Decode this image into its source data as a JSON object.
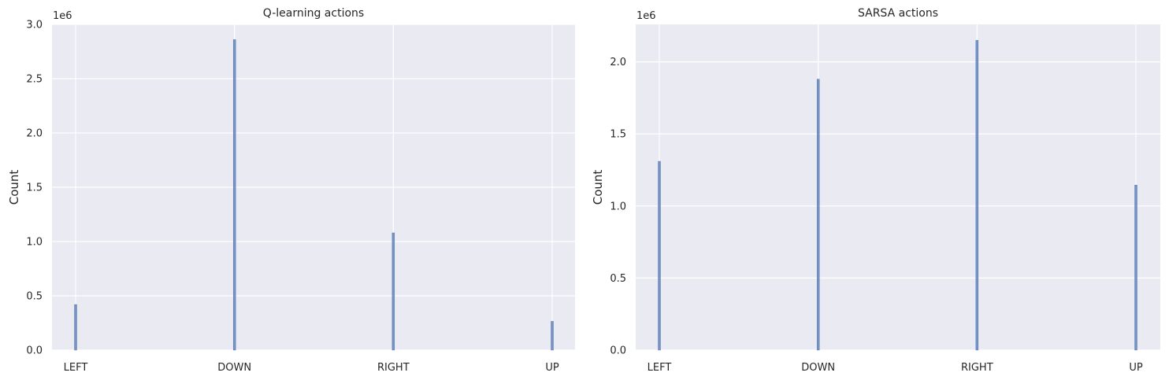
{
  "chart_data": [
    {
      "type": "bar",
      "title": "Q-learning actions",
      "xlabel": "",
      "ylabel": "Count",
      "offset_label": "1e6",
      "categories": [
        "LEFT",
        "DOWN",
        "RIGHT",
        "UP"
      ],
      "values": [
        420000,
        2860000,
        1080000,
        265000
      ],
      "ylim": [
        0,
        3000000
      ],
      "yticks": [
        0,
        500000,
        1000000,
        1500000,
        2000000,
        2500000,
        3000000
      ],
      "ytick_labels": [
        "0.0",
        "0.5",
        "1.0",
        "1.5",
        "2.0",
        "2.5",
        "3.0"
      ],
      "grid": true,
      "bar_color": "#4c72b0"
    },
    {
      "type": "bar",
      "title": "SARSA actions",
      "xlabel": "",
      "ylabel": "Count",
      "offset_label": "1e6",
      "categories": [
        "LEFT",
        "DOWN",
        "RIGHT",
        "UP"
      ],
      "values": [
        1310000,
        1880000,
        2150000,
        1145000
      ],
      "ylim": [
        0,
        2260000
      ],
      "yticks": [
        0,
        500000,
        1000000,
        1500000,
        2000000
      ],
      "ytick_labels": [
        "0.0",
        "0.5",
        "1.0",
        "1.5",
        "2.0"
      ],
      "grid": true,
      "bar_color": "#4c72b0"
    }
  ]
}
